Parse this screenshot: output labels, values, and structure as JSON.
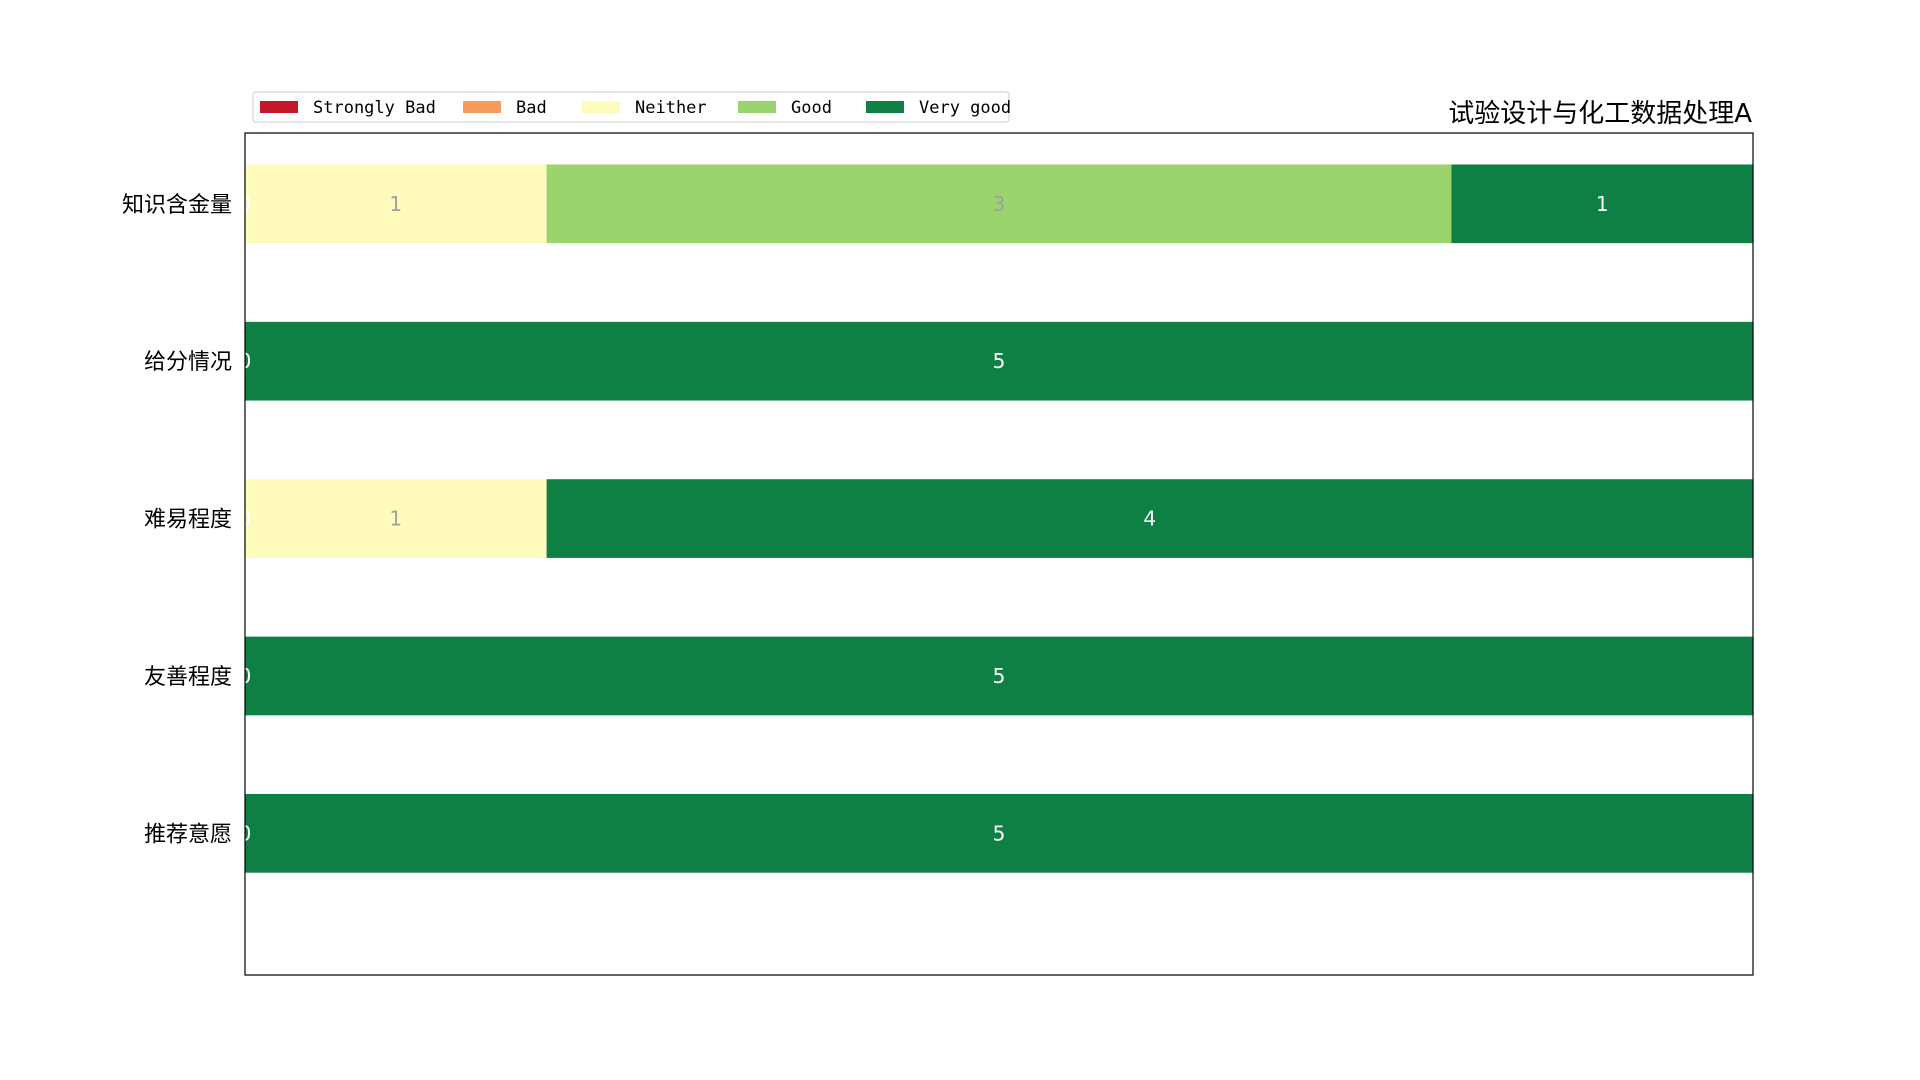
{
  "chart_data": {
    "type": "bar",
    "orientation": "horizontal",
    "stacked": true,
    "title": "试验设计与化工数据处理A",
    "xlabel": "",
    "ylabel": "",
    "xlim": [
      0,
      5
    ],
    "grid": false,
    "legend_position": "top-left",
    "categories": [
      "知识含金量",
      "给分情况",
      "难易程度",
      "友善程度",
      "推荐意愿"
    ],
    "series": [
      {
        "name": "Strongly Bad",
        "color": "#c3172a",
        "values": [
          0,
          0,
          0,
          0,
          0
        ]
      },
      {
        "name": "Bad",
        "color": "#f79c5c",
        "values": [
          0,
          0,
          0,
          0,
          0
        ]
      },
      {
        "name": "Neither",
        "color": "#fefbbc",
        "values": [
          1,
          0,
          1,
          0,
          0
        ]
      },
      {
        "name": "Good",
        "color": "#9bd36c",
        "values": [
          3,
          0,
          0,
          0,
          0
        ]
      },
      {
        "name": "Very good",
        "color": "#0e8044",
        "values": [
          1,
          5,
          4,
          5,
          5
        ]
      }
    ]
  }
}
